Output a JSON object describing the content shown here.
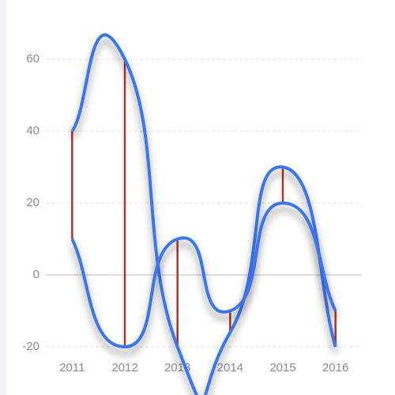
{
  "chart_data": {
    "type": "line",
    "smooth": true,
    "grid": true,
    "categories": [
      "2011",
      "2012",
      "2013",
      "2014",
      "2015",
      "2016"
    ],
    "series": [
      {
        "color": "#3b76ef",
        "values": [
          40,
          60,
          -20,
          -16,
          30,
          -20
        ]
      },
      {
        "color": "#3b76ef",
        "values": [
          10,
          -20,
          10,
          -10,
          20,
          -10
        ]
      }
    ],
    "range_bar_color": "#b8322b",
    "ylim": [
      -20,
      60
    ],
    "yticks": [
      -20,
      0,
      20,
      40,
      60
    ]
  }
}
